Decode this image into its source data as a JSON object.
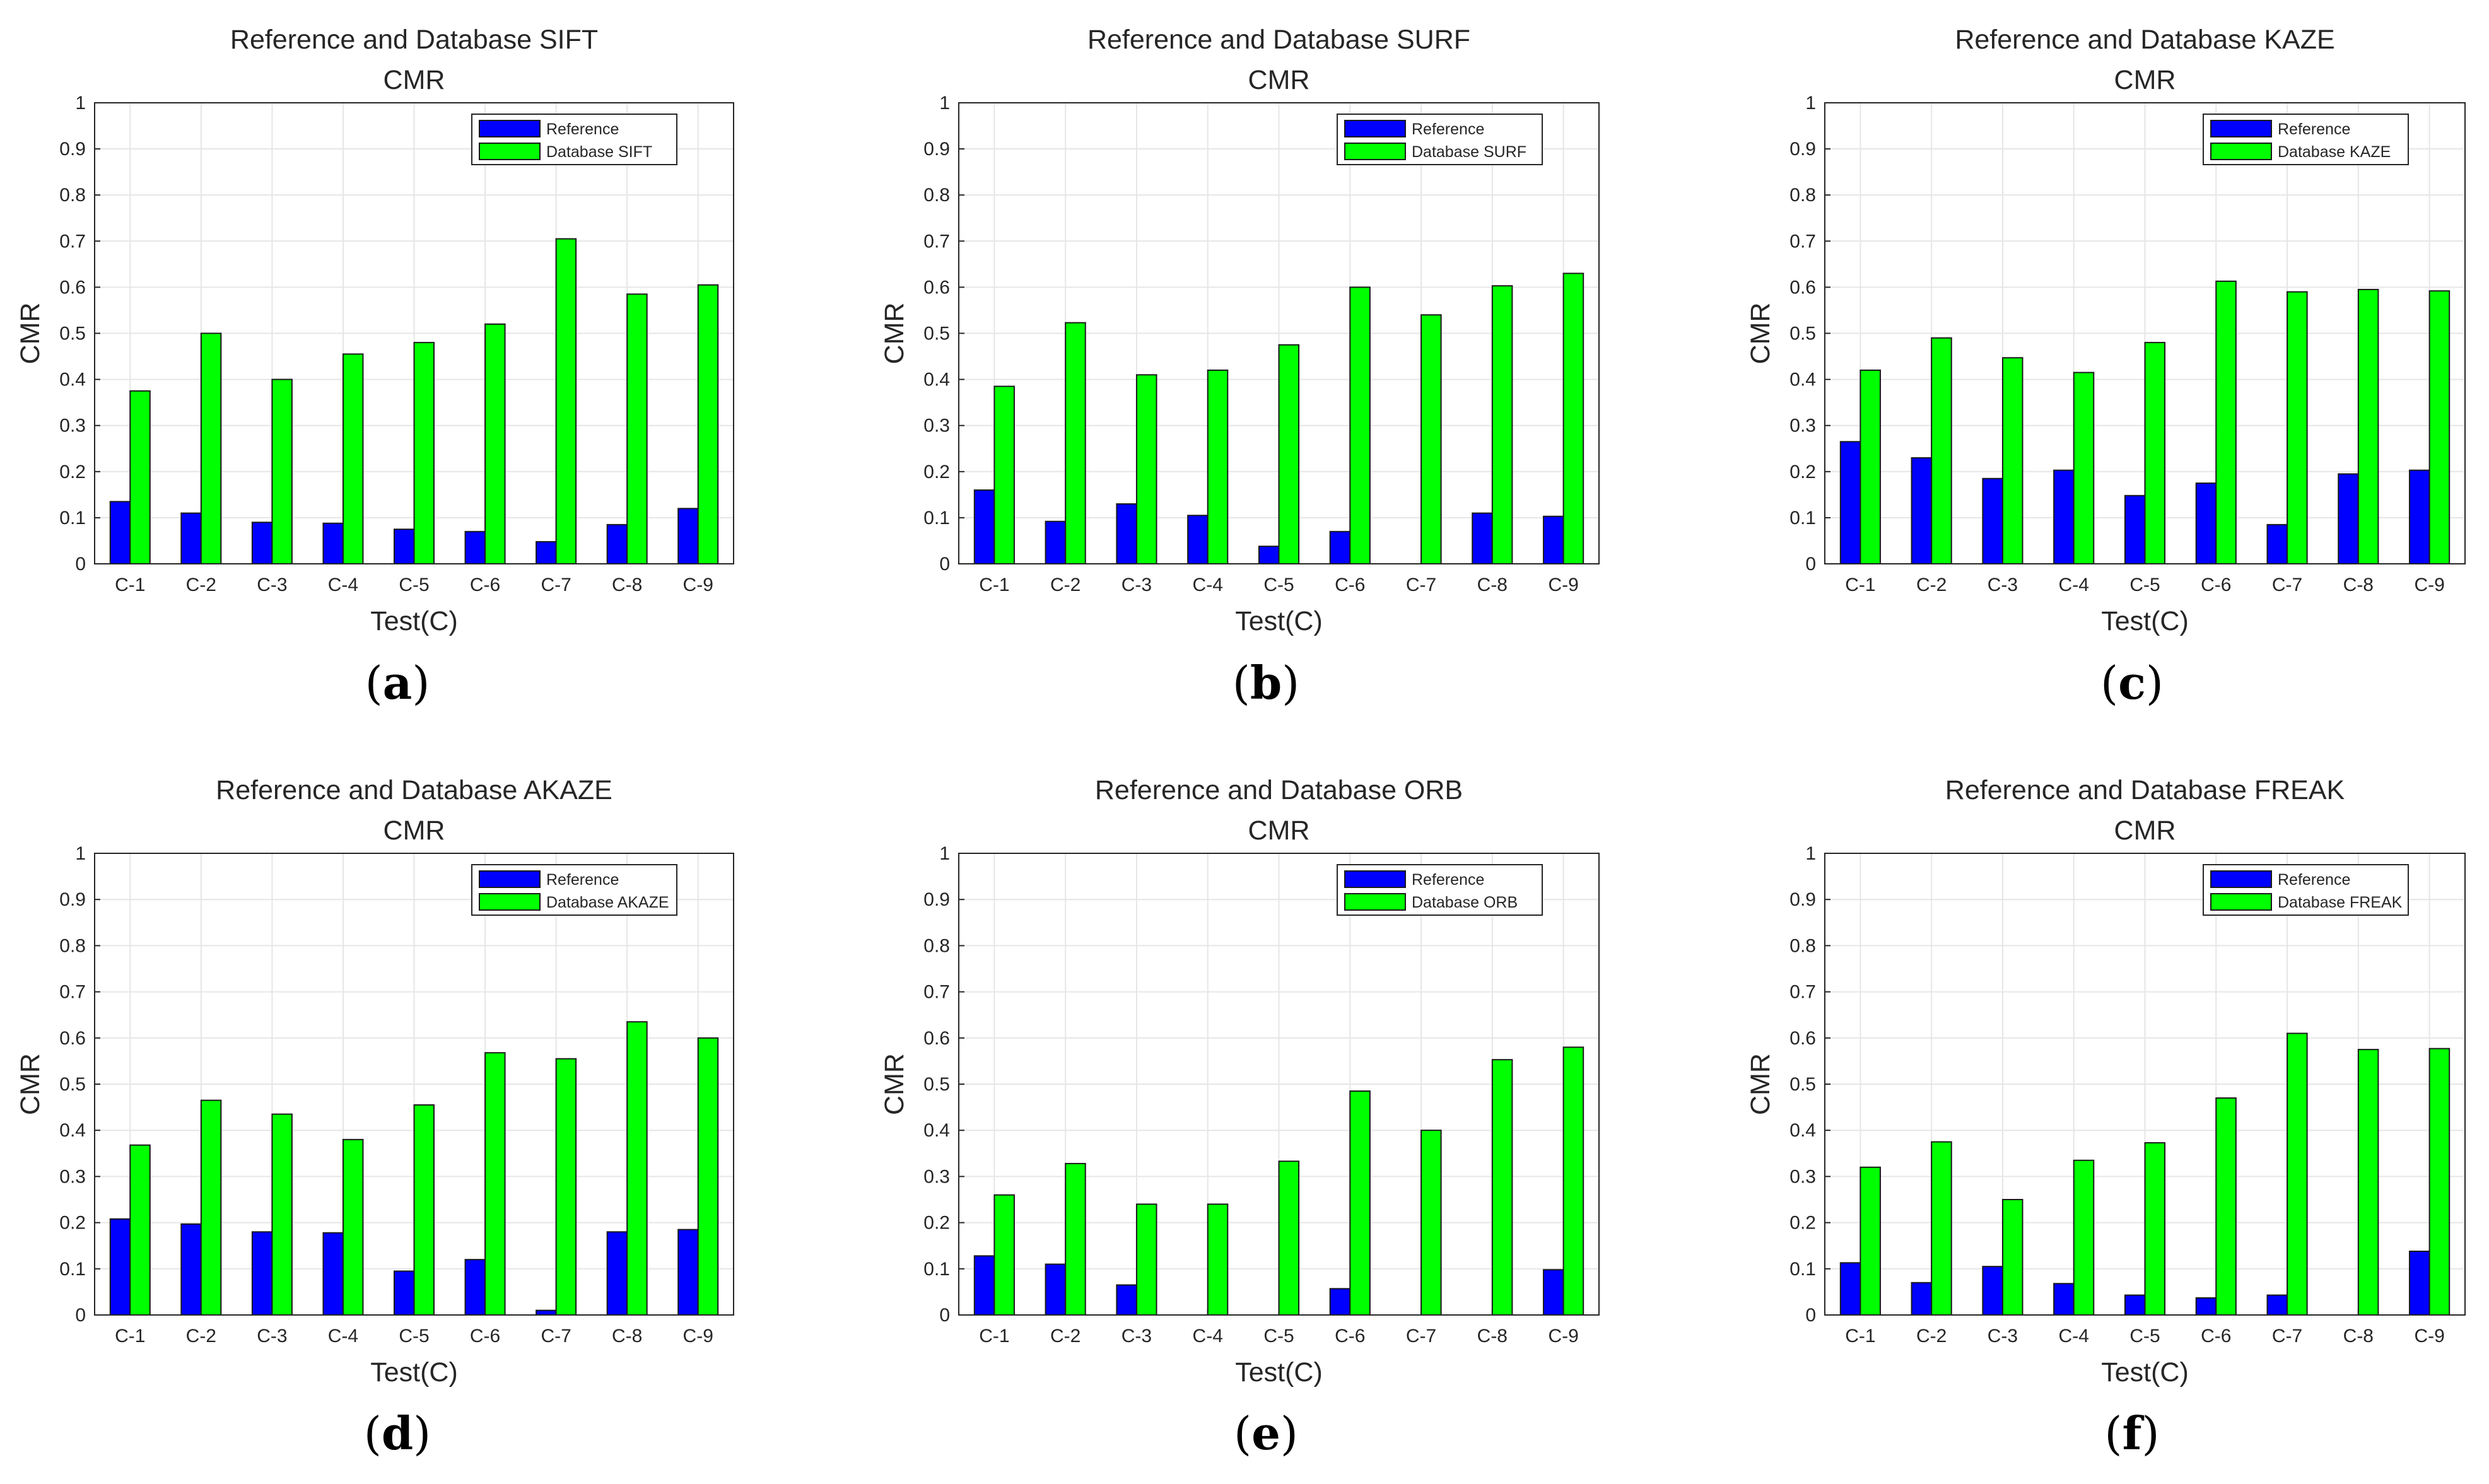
{
  "colors": {
    "reference": "#0000ff",
    "database": "#00ff00",
    "grid": "#e6e6e6",
    "axis": "#262626"
  },
  "chart_data": [
    {
      "type": "bar",
      "title": "Reference and Database SIFT",
      "subtitle": "CMR",
      "xlabel": "Test(C)",
      "ylabel": "CMR",
      "ylim": [
        0,
        1
      ],
      "yticks": [
        "0",
        "0.1",
        "0.2",
        "0.3",
        "0.4",
        "0.5",
        "0.6",
        "0.7",
        "0.8",
        "0.9",
        "1"
      ],
      "grid": true,
      "legend_position": "top-right",
      "panel_label": "a",
      "categories": [
        "C-1",
        "C-2",
        "C-3",
        "C-4",
        "C-5",
        "C-6",
        "C-7",
        "C-8",
        "C-9"
      ],
      "series": [
        {
          "name": "Reference",
          "color": "#0000ff",
          "values": [
            0.135,
            0.11,
            0.09,
            0.088,
            0.075,
            0.07,
            0.048,
            0.085,
            0.12
          ]
        },
        {
          "name": "Database SIFT",
          "color": "#00ff00",
          "values": [
            0.375,
            0.5,
            0.4,
            0.455,
            0.48,
            0.52,
            0.705,
            0.585,
            0.605
          ]
        }
      ]
    },
    {
      "type": "bar",
      "title": "Reference and Database SURF",
      "subtitle": "CMR",
      "xlabel": "Test(C)",
      "ylabel": "CMR",
      "ylim": [
        0,
        1
      ],
      "yticks": [
        "0",
        "0.1",
        "0.2",
        "0.3",
        "0.4",
        "0.5",
        "0.6",
        "0.7",
        "0.8",
        "0.9",
        "1"
      ],
      "grid": true,
      "legend_position": "top-right",
      "panel_label": "b",
      "categories": [
        "C-1",
        "C-2",
        "C-3",
        "C-4",
        "C-5",
        "C-6",
        "C-7",
        "C-8",
        "C-9"
      ],
      "series": [
        {
          "name": "Reference",
          "color": "#0000ff",
          "values": [
            0.16,
            0.092,
            0.13,
            0.105,
            0.038,
            0.07,
            0.0,
            0.11,
            0.103
          ]
        },
        {
          "name": "Database SURF",
          "color": "#00ff00",
          "values": [
            0.385,
            0.523,
            0.41,
            0.42,
            0.475,
            0.6,
            0.54,
            0.603,
            0.63
          ]
        }
      ]
    },
    {
      "type": "bar",
      "title": "Reference and Database KAZE",
      "subtitle": "CMR",
      "xlabel": "Test(C)",
      "ylabel": "CMR",
      "ylim": [
        0,
        1
      ],
      "yticks": [
        "0",
        "0.1",
        "0.2",
        "0.3",
        "0.4",
        "0.5",
        "0.6",
        "0.7",
        "0.8",
        "0.9",
        "1"
      ],
      "grid": true,
      "legend_position": "top-right",
      "panel_label": "c",
      "categories": [
        "C-1",
        "C-2",
        "C-3",
        "C-4",
        "C-5",
        "C-6",
        "C-7",
        "C-8",
        "C-9"
      ],
      "series": [
        {
          "name": "Reference",
          "color": "#0000ff",
          "values": [
            0.265,
            0.23,
            0.185,
            0.203,
            0.148,
            0.175,
            0.085,
            0.195,
            0.203
          ]
        },
        {
          "name": "Database KAZE",
          "color": "#00ff00",
          "values": [
            0.42,
            0.49,
            0.447,
            0.415,
            0.48,
            0.613,
            0.59,
            0.595,
            0.592
          ]
        }
      ]
    },
    {
      "type": "bar",
      "title": "Reference and Database AKAZE",
      "subtitle": "CMR",
      "xlabel": "Test(C)",
      "ylabel": "CMR",
      "ylim": [
        0,
        1
      ],
      "yticks": [
        "0",
        "0.1",
        "0.2",
        "0.3",
        "0.4",
        "0.5",
        "0.6",
        "0.7",
        "0.8",
        "0.9",
        "1"
      ],
      "grid": true,
      "legend_position": "top-right",
      "panel_label": "d",
      "categories": [
        "C-1",
        "C-2",
        "C-3",
        "C-4",
        "C-5",
        "C-6",
        "C-7",
        "C-8",
        "C-9"
      ],
      "series": [
        {
          "name": "Reference",
          "color": "#0000ff",
          "values": [
            0.208,
            0.197,
            0.18,
            0.178,
            0.095,
            0.12,
            0.01,
            0.18,
            0.185
          ]
        },
        {
          "name": "Database AKAZE",
          "color": "#00ff00",
          "values": [
            0.368,
            0.465,
            0.435,
            0.38,
            0.455,
            0.568,
            0.555,
            0.635,
            0.6
          ]
        }
      ]
    },
    {
      "type": "bar",
      "title": "Reference and Database ORB",
      "subtitle": "CMR",
      "xlabel": "Test(C)",
      "ylabel": "CMR",
      "ylim": [
        0,
        1
      ],
      "yticks": [
        "0",
        "0.1",
        "0.2",
        "0.3",
        "0.4",
        "0.5",
        "0.6",
        "0.7",
        "0.8",
        "0.9",
        "1"
      ],
      "grid": true,
      "legend_position": "top-right",
      "panel_label": "e",
      "categories": [
        "C-1",
        "C-2",
        "C-3",
        "C-4",
        "C-5",
        "C-6",
        "C-7",
        "C-8",
        "C-9"
      ],
      "series": [
        {
          "name": "Reference",
          "color": "#0000ff",
          "values": [
            0.128,
            0.11,
            0.065,
            0.0,
            0.0,
            0.057,
            0.0,
            0.0,
            0.098
          ]
        },
        {
          "name": "Database ORB",
          "color": "#00ff00",
          "values": [
            0.26,
            0.328,
            0.24,
            0.24,
            0.333,
            0.485,
            0.4,
            0.553,
            0.58
          ]
        }
      ]
    },
    {
      "type": "bar",
      "title": "Reference and Database FREAK",
      "subtitle": "CMR",
      "xlabel": "Test(C)",
      "ylabel": "CMR",
      "ylim": [
        0,
        1
      ],
      "yticks": [
        "0",
        "0.1",
        "0.2",
        "0.3",
        "0.4",
        "0.5",
        "0.6",
        "0.7",
        "0.8",
        "0.9",
        "1"
      ],
      "grid": true,
      "legend_position": "top-right",
      "panel_label": "f",
      "categories": [
        "C-1",
        "C-2",
        "C-3",
        "C-4",
        "C-5",
        "C-6",
        "C-7",
        "C-8",
        "C-9"
      ],
      "series": [
        {
          "name": "Reference",
          "color": "#0000ff",
          "values": [
            0.113,
            0.07,
            0.105,
            0.068,
            0.043,
            0.037,
            0.043,
            0.0,
            0.138
          ]
        },
        {
          "name": "Database FREAK",
          "color": "#00ff00",
          "values": [
            0.32,
            0.375,
            0.25,
            0.335,
            0.373,
            0.47,
            0.61,
            0.575,
            0.577
          ]
        }
      ]
    }
  ]
}
